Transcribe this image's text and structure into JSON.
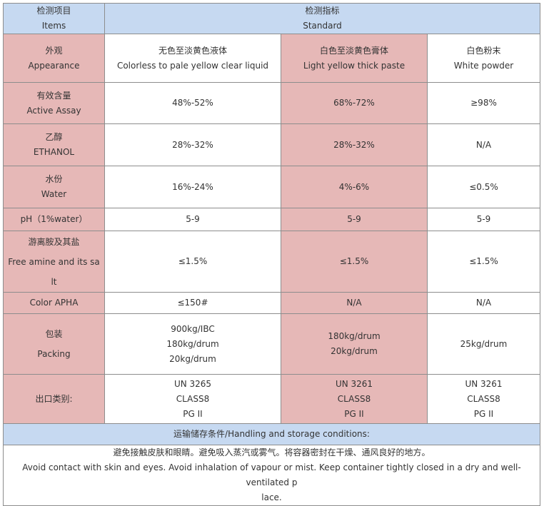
{
  "header": {
    "items_cn": "检测项目",
    "items_en": "Items",
    "standard_cn": "检测指标",
    "standard_en": "Standard"
  },
  "rows": [
    {
      "label_cn": "外观",
      "label_en": "Appearance",
      "values": [
        [
          "无色至淡黄色液体",
          "Colorless to pale yellow clear liquid"
        ],
        [
          "白色至淡黄色膏体",
          "Light yellow thick paste"
        ],
        [
          "白色粉末",
          "White powder"
        ]
      ]
    },
    {
      "label_cn": "有效含量",
      "label_en": "Active Assay",
      "values": [
        [
          "48%-52%"
        ],
        [
          "68%-72%"
        ],
        [
          "≥98%"
        ]
      ]
    },
    {
      "label_cn": "乙醇",
      "label_en": "ETHANOL",
      "values": [
        [
          "28%-32%"
        ],
        [
          "28%-32%"
        ],
        [
          "N/A"
        ]
      ]
    },
    {
      "label_cn": "水份",
      "label_en": "Water",
      "values": [
        [
          "16%-24%"
        ],
        [
          "4%-6%"
        ],
        [
          "≤0.5%"
        ]
      ]
    },
    {
      "label_cn": "pH（1%water）",
      "label_en": "",
      "values": [
        [
          "5-9"
        ],
        [
          "5-9"
        ],
        [
          "5-9"
        ]
      ]
    },
    {
      "label_cn": "游离胺及其盐",
      "label_en": "Free amine and its sa",
      "label_en2": "lt",
      "values": [
        [
          "≤1.5%"
        ],
        [
          "≤1.5%"
        ],
        [
          "≤1.5%"
        ]
      ]
    },
    {
      "label_cn": "Color APHA",
      "label_en": "",
      "values": [
        [
          "≤150#"
        ],
        [
          "N/A"
        ],
        [
          "N/A"
        ]
      ]
    },
    {
      "label_cn": "包装",
      "label_en": "Packing",
      "values": [
        [
          "900kg/IBC",
          "180kg/drum",
          "20kg/drum"
        ],
        [
          "180kg/drum",
          "20kg/drum"
        ],
        [
          "25kg/drum"
        ]
      ]
    },
    {
      "label_cn": "出口类别:",
      "label_en": "",
      "values": [
        [
          "UN 3265",
          "CLASS8",
          "PG  II"
        ],
        [
          "UN 3261",
          "CLASS8",
          "PG  II"
        ],
        [
          "UN 3261",
          "CLASS8",
          "PG  II"
        ]
      ]
    }
  ],
  "storage": {
    "title": "运输储存条件/Handling and storage conditions:",
    "cn": "避免接触皮肤和眼睛。避免吸入蒸汽或雾气。将容器密封在干燥、通风良好的地方。",
    "en": "Avoid contact with skin and eyes. Avoid inhalation of vapour or mist. Keep container tightly closed in a dry and well-ventilated p",
    "en2": "lace."
  },
  "colors": {
    "header_bg": "#c6d9f1",
    "label_bg": "#e6b8b7",
    "border": "#8d8d8d"
  }
}
